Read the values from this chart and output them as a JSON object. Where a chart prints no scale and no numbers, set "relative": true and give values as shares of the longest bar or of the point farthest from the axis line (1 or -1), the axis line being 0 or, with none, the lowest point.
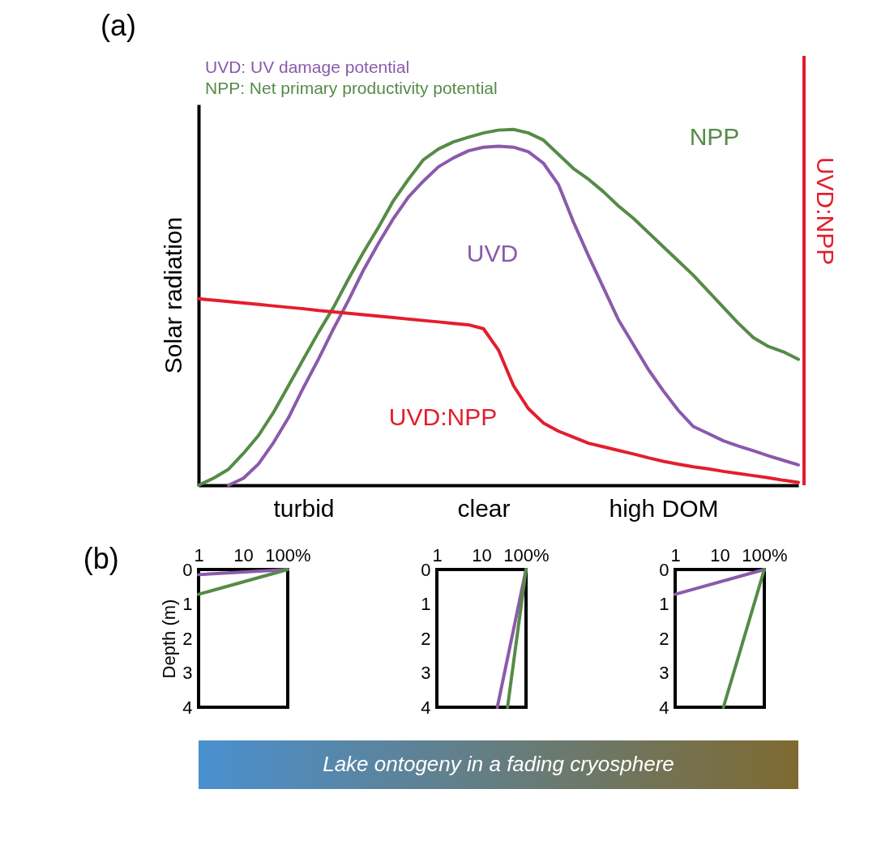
{
  "chart_data": [
    {
      "type": "line",
      "title": "(a)",
      "ylabel": "Solar radiation",
      "y2label": "UVD:NPP",
      "relative": true,
      "grid": false,
      "categories": [
        null,
        null,
        null,
        null,
        null,
        null,
        null,
        "turbid",
        null,
        null,
        null,
        null,
        null,
        null,
        null,
        null,
        null,
        null,
        null,
        "clear",
        null,
        null,
        null,
        null,
        null,
        null,
        null,
        null,
        null,
        null,
        null,
        "high DOM",
        null,
        null,
        null,
        null,
        null,
        null,
        null,
        null,
        null
      ],
      "annotations": [
        "UVD: UV damage potential",
        "NPP: Net primary productivity potential"
      ],
      "series": [
        {
          "name": "UVD",
          "color": "#8a5aab",
          "values": [
            null,
            null,
            0,
            0.02,
            0.06,
            0.12,
            0.19,
            0.275,
            0.355,
            0.44,
            0.52,
            0.605,
            0.68,
            0.75,
            0.81,
            0.855,
            0.895,
            0.92,
            0.94,
            0.95,
            0.953,
            0.95,
            0.937,
            0.905,
            0.845,
            0.74,
            0.645,
            0.555,
            0.465,
            0.395,
            0.325,
            0.265,
            0.21,
            0.165,
            0.145,
            0.125,
            0.11,
            0.097,
            0.083,
            0.07,
            0.057
          ]
        },
        {
          "name": "NPP",
          "color": "#558b47",
          "values": [
            0,
            0.02,
            0.045,
            0.09,
            0.14,
            0.205,
            0.28,
            0.355,
            0.43,
            0.5,
            0.58,
            0.655,
            0.725,
            0.8,
            0.86,
            0.915,
            0.945,
            0.965,
            0.978,
            0.99,
            0.998,
            1.0,
            0.99,
            0.97,
            0.93,
            0.89,
            0.86,
            0.825,
            0.785,
            0.75,
            0.71,
            0.67,
            0.63,
            0.59,
            0.545,
            0.5,
            0.455,
            0.415,
            0.39,
            0.375,
            0.354
          ]
        },
        {
          "name": "UVD:NPP",
          "color": "#e31e2d",
          "values": [
            0.524,
            0.52,
            0.516,
            0.512,
            0.508,
            0.504,
            0.5,
            0.496,
            0.491,
            0.487,
            0.483,
            0.479,
            0.475,
            0.471,
            0.467,
            0.463,
            0.459,
            0.455,
            0.451,
            0.44,
            0.38,
            0.28,
            0.215,
            0.175,
            0.152,
            0.135,
            0.118,
            0.108,
            0.098,
            0.088,
            0.077,
            0.067,
            0.059,
            0.052,
            0.046,
            0.039,
            0.033,
            0.027,
            0.021,
            0.014,
            0.008
          ]
        }
      ]
    },
    {
      "type": "line",
      "title": "(b)",
      "ylabel": "Depth (m)",
      "log": "x",
      "xlim": [
        1,
        100
      ],
      "xticks": [
        1,
        10,
        {
          "value": 100,
          "label": "100%"
        }
      ],
      "ylim": [
        4,
        0
      ],
      "yticks": [
        0,
        1,
        2,
        3,
        4
      ],
      "grid": false,
      "series": [
        {
          "color": "#8a5aab",
          "x": [
            1,
            100
          ],
          "values": [
            0.15,
            0
          ]
        },
        {
          "color": "#558b47",
          "x": [
            1,
            100
          ],
          "values": [
            0.72,
            0
          ]
        }
      ]
    },
    {
      "type": "line",
      "log": "x",
      "xlim": [
        1,
        100
      ],
      "xticks": [
        1,
        10,
        {
          "value": 100,
          "label": "100%"
        }
      ],
      "ylim": [
        4,
        0
      ],
      "yticks": [
        0,
        1,
        2,
        3,
        4
      ],
      "grid": false,
      "series": [
        {
          "color": "#8a5aab",
          "x": [
            100,
            22.7
          ],
          "values": [
            0,
            4
          ]
        },
        {
          "color": "#558b47",
          "x": [
            100,
            38.5
          ],
          "values": [
            0,
            4
          ]
        }
      ]
    },
    {
      "type": "line",
      "log": "x",
      "xlim": [
        1,
        100
      ],
      "xticks": [
        1,
        10,
        {
          "value": 100,
          "label": "100%"
        }
      ],
      "ylim": [
        4,
        0
      ],
      "yticks": [
        0,
        1,
        2,
        3,
        4
      ],
      "grid": false,
      "series": [
        {
          "color": "#8a5aab",
          "x": [
            1,
            100
          ],
          "values": [
            0.72,
            0
          ]
        },
        {
          "color": "#558b47",
          "x": [
            100,
            12.1
          ],
          "values": [
            0,
            4
          ]
        }
      ]
    },
    {
      "type": "other",
      "annotations": [
        "Lake ontogeny in a fading cryosphere"
      ]
    }
  ]
}
